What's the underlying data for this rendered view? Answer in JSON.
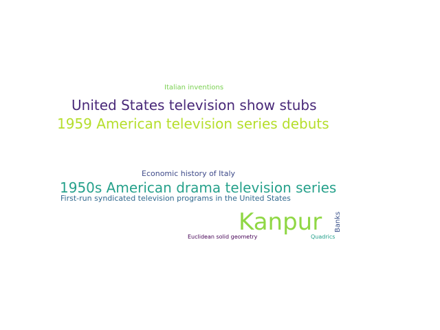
{
  "words": [
    {
      "key": "italian",
      "text": "Italian inventions",
      "color": "#7ad151"
    },
    {
      "key": "us_stubs",
      "text": "United States television show stubs",
      "color": "#482878"
    },
    {
      "key": "w1959",
      "text": "1959 American television series debuts",
      "color": "#b5de2b"
    },
    {
      "key": "econ",
      "text": "Economic history of Italy",
      "color": "#3e4a89"
    },
    {
      "key": "w1950s",
      "text": "1950s American drama television series",
      "color": "#26a18b"
    },
    {
      "key": "firstrun",
      "text": "First-run syndicated television programs in the United States",
      "color": "#31688e"
    },
    {
      "key": "kanpur",
      "text": "Kanpur",
      "color": "#8fd744"
    },
    {
      "key": "banks",
      "text": "Banks",
      "color": "#3b528b"
    },
    {
      "key": "euclid",
      "text": "Euclidean solid geometry",
      "color": "#440154"
    },
    {
      "key": "quadrics",
      "text": "Quadrics",
      "color": "#1f9e89"
    }
  ]
}
